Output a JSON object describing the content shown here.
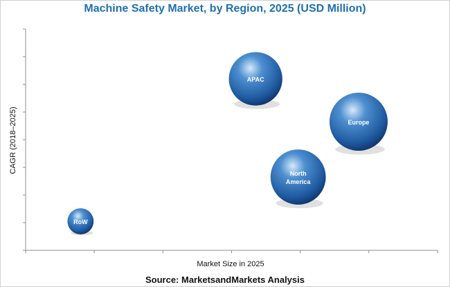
{
  "chart_data": {
    "type": "scatter",
    "title": "Machine Safety Market, by Region, 2025 (USD Million)",
    "xlabel": "Market Size in 2025",
    "ylabel": "CAGR (2018–2025)",
    "xlim": [
      0,
      6
    ],
    "ylim": [
      0,
      8
    ],
    "grid": false,
    "legend": "none",
    "x_ticks": 6,
    "y_ticks": 8,
    "bubble_color": "#2e6cb0",
    "points": [
      {
        "label": "APAC",
        "x": 3.35,
        "y": 6.2,
        "size": 0.92
      },
      {
        "label": "Europe",
        "x": 4.85,
        "y": 4.65,
        "size": 1.0
      },
      {
        "label": "North\nAmerica",
        "x": 3.97,
        "y": 2.65,
        "size": 0.95
      },
      {
        "label": "RoW",
        "x": 0.8,
        "y": 1.05,
        "size": 0.45
      }
    ]
  },
  "source": "Source: MarketsandMarkets Analysis"
}
